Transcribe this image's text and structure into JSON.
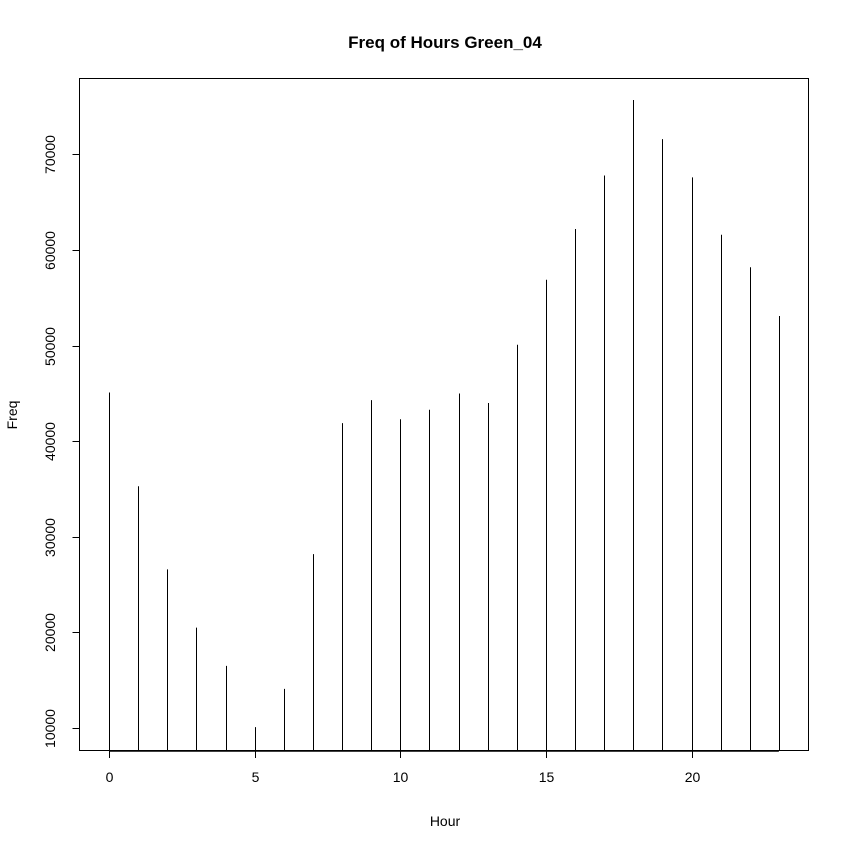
{
  "chart_data": {
    "type": "bar",
    "title": "Freq of Hours Green_04",
    "xlabel": "Hour",
    "ylabel": "Freq",
    "x": [
      0,
      1,
      2,
      3,
      4,
      5,
      6,
      7,
      8,
      9,
      10,
      11,
      12,
      13,
      14,
      15,
      16,
      17,
      18,
      19,
      20,
      21,
      22,
      23
    ],
    "values": [
      45100,
      35300,
      26600,
      20500,
      16500,
      10100,
      14100,
      28200,
      41900,
      44300,
      42300,
      43300,
      45000,
      44000,
      50100,
      56900,
      62200,
      67800,
      75700,
      71600,
      67600,
      61600,
      58200,
      53100
    ],
    "baseline": 7600,
    "xlim": [
      -1,
      24
    ],
    "ylim": [
      7600,
      78000
    ],
    "xticks": [
      0,
      5,
      10,
      15,
      20
    ],
    "yticks": [
      10000,
      20000,
      30000,
      40000,
      50000,
      60000,
      70000
    ],
    "ytick_labels": [
      "10000",
      "20000",
      "30000",
      "40000",
      "50000",
      "60000",
      "70000"
    ],
    "grid": false,
    "legend": "none",
    "bar_color": "#000000"
  }
}
